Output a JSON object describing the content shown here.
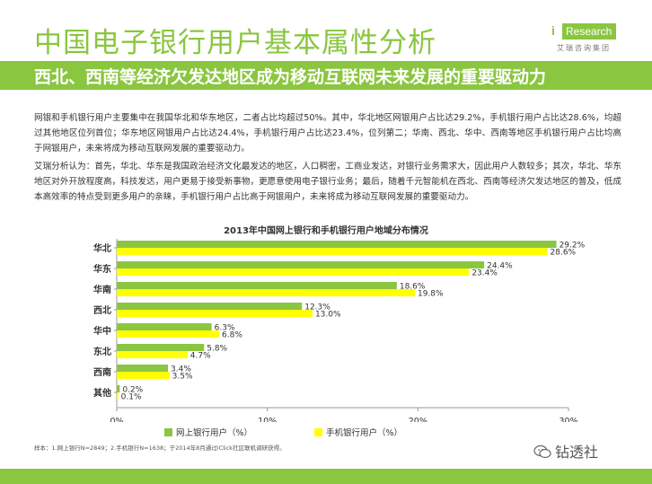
{
  "header": {
    "title": "中国电子银行用户基本属性分析",
    "subtitle": "西北、西南等经济欠发达地区成为移动互联网未来发展的重要驱动力"
  },
  "brand": {
    "logo_i": "i",
    "logo_text": "Research",
    "logo_sub": "艾瑞咨询集团"
  },
  "body": {
    "paragraph1": "网银和手机银行用户主要集中在我国华北和华东地区，二者占比均超过50%。其中，华北地区网银用户占比达29.2%，手机银行用户占比达28.6%，均超过其他地区位列首位；华东地区网银用户占比达24.4%，手机银行用户占比达23.4%，位列第二；华南、西北、华中、西南等地区手机银行用户占比均高于网银用户，未来将成为移动互联网发展的重要驱动力。",
    "paragraph2": "艾瑞分析认为：首先，华北、华东是我国政治经济文化最发达的地区，人口稠密，工商业发达，对银行业务需求大，因此用户人数较多；其次，华北、华东地区对外开放程度高，科技发达，用户更易于接受新事物，更愿意使用电子银行业务；最后，随着千元智能机在西北、西南等经济欠发达地区的普及，低成本高效率的特点受到更多用户的亲睐，手机银行用户占比高于网银用户，未来将成为移动互联网发展的重要驱动力。"
  },
  "chart_data": {
    "type": "bar",
    "orientation": "horizontal",
    "title": "2013年中国网上银行和手机银行用户地域分布情况",
    "categories": [
      "华北",
      "华东",
      "华南",
      "西北",
      "华中",
      "东北",
      "西南",
      "其他"
    ],
    "series": [
      {
        "name": "网上银行用户（%）",
        "color": "#8ac63f",
        "values": [
          29.2,
          24.4,
          18.6,
          12.3,
          6.3,
          5.8,
          3.4,
          0.2
        ],
        "labels": [
          "29.2%",
          "24.4%",
          "18.6%",
          "12.3%",
          "6.3%",
          "5.8%",
          "3.4%",
          "0.2%"
        ]
      },
      {
        "name": "手机银行用户（%）",
        "color": "#ffff00",
        "values": [
          28.6,
          23.4,
          19.8,
          13.0,
          6.8,
          4.7,
          3.5,
          0.1
        ],
        "labels": [
          "28.6%",
          "23.4%",
          "19.8%",
          "13.0%",
          "6.8%",
          "4.7%",
          "3.5%",
          "0.1%"
        ]
      }
    ],
    "xlim": [
      0,
      30
    ],
    "xticks": [
      0,
      10,
      20,
      30
    ],
    "xtick_labels": [
      "0%",
      "10%",
      "20%",
      "30%"
    ],
    "grid": false,
    "legend": "bottom"
  },
  "footer": {
    "note": "样本：1.网上银行N=2849；2.手机银行N=1638；于2014年8月通过iClick社区联机调研获得。",
    "wechat_label": "钻透社",
    "accent_color": "#8ac63f"
  }
}
